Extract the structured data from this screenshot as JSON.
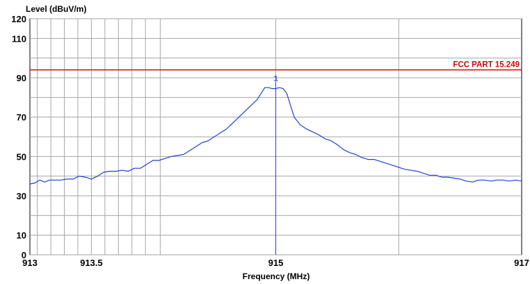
{
  "chart_data": {
    "type": "line",
    "ylabel": "Level (dBuV/m)",
    "xlabel": "Frequency (MHz)",
    "xlim": [
      913,
      917
    ],
    "ylim": [
      0,
      120
    ],
    "y_ticks": [
      0,
      10,
      30,
      50,
      70,
      90,
      110,
      120
    ],
    "x_ticks": [
      {
        "value": 913,
        "label": "913"
      },
      {
        "value": 913.5,
        "label": "913.5"
      },
      {
        "value": 915,
        "label": "915"
      },
      {
        "value": 917,
        "label": "917"
      }
    ],
    "y_grid": [
      0,
      10,
      20,
      30,
      40,
      50,
      60,
      70,
      80,
      90,
      100,
      110,
      120
    ],
    "x_grid": [
      913.06,
      913.17,
      913.28,
      913.39,
      913.5,
      913.61,
      913.72,
      913.83,
      913.94,
      914.06,
      915,
      916
    ],
    "grid": true,
    "series": [
      {
        "name": "",
        "color": "#1f3fd6",
        "x": [
          913.0,
          913.04,
          913.08,
          913.12,
          913.16,
          913.2,
          913.25,
          913.3,
          913.35,
          913.4,
          913.45,
          913.5,
          913.55,
          913.6,
          913.65,
          913.7,
          913.75,
          913.8,
          913.85,
          913.9,
          913.95,
          914.0,
          914.05,
          914.1,
          914.15,
          914.2,
          914.25,
          914.3,
          914.35,
          914.4,
          914.45,
          914.5,
          914.55,
          914.6,
          914.65,
          914.7,
          914.75,
          914.8,
          914.85,
          914.88,
          914.91,
          914.94,
          914.97,
          915.0,
          915.03,
          915.06,
          915.09,
          915.12,
          915.15,
          915.2,
          915.25,
          915.3,
          915.35,
          915.4,
          915.45,
          915.5,
          915.55,
          915.6,
          915.65,
          915.7,
          915.75,
          915.8,
          915.85,
          915.9,
          915.95,
          916.0,
          916.05,
          916.1,
          916.15,
          916.2,
          916.25,
          916.3,
          916.35,
          916.4,
          916.45,
          916.5,
          916.55,
          916.6,
          916.65,
          916.7,
          916.75,
          916.8,
          916.85,
          916.9,
          916.95,
          917.0
        ],
        "y": [
          36,
          36.5,
          38,
          37,
          38,
          38,
          38,
          38.5,
          38.5,
          40,
          39.5,
          38.5,
          40,
          42,
          42.5,
          42.5,
          43,
          42.5,
          44,
          44,
          46,
          48,
          48,
          49,
          50,
          50.5,
          51,
          53,
          55,
          57,
          58,
          60,
          62,
          64,
          67,
          70,
          73,
          76,
          79,
          82,
          85,
          85,
          84.5,
          84.5,
          85,
          84.5,
          82,
          76,
          70,
          66,
          64,
          62.5,
          61,
          59,
          58,
          56,
          53.5,
          52,
          51,
          49.5,
          48.5,
          48.5,
          47.5,
          46.5,
          45.5,
          44.5,
          43.5,
          43,
          42.5,
          41.5,
          40.5,
          40.5,
          39.5,
          39.5,
          39,
          38.5,
          37.5,
          37,
          38,
          38,
          37.5,
          38,
          38,
          37.5,
          38,
          37.5
        ]
      }
    ],
    "limit_line": {
      "label": "FCC PART 15.249",
      "value": 94,
      "color": "#e00000"
    },
    "marker": {
      "label": "1",
      "x": 915.0,
      "y": 88
    }
  }
}
